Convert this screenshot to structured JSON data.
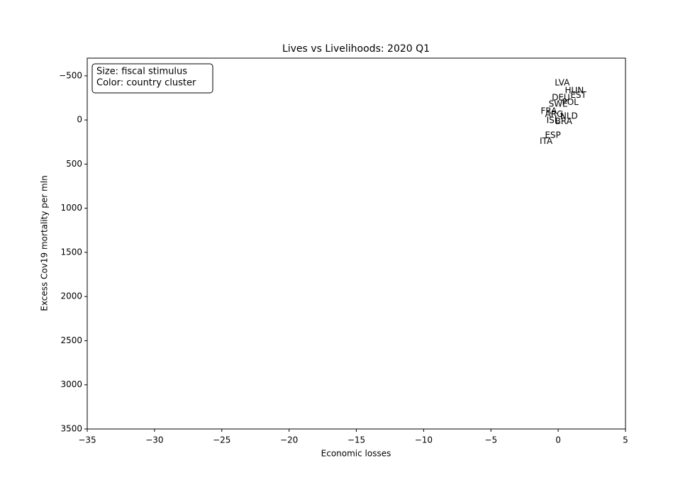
{
  "chart_data": {
    "type": "scatter",
    "title": "Lives vs Livelihoods: 2020 Q1",
    "xlabel": "Economic losses",
    "ylabel": "Excess Cov19 mortality per mln",
    "annotation": [
      "Size: fiscal stimulus",
      "Color: country cluster"
    ],
    "labels": [
      "LVA",
      "HUN",
      "EST",
      "DEU",
      "POL",
      "SWE",
      "FRA",
      "ARG",
      "NLD",
      "ISL",
      "BRA",
      "ESP",
      "ITA"
    ],
    "x": [
      0.3,
      1.2,
      1.5,
      0.2,
      0.9,
      0.0,
      -0.7,
      -0.3,
      0.8,
      -0.4,
      0.4,
      -0.4,
      -0.9
    ],
    "y": [
      -420,
      -330,
      -280,
      -250,
      -200,
      -180,
      -97,
      -60,
      -40,
      8,
      20,
      177,
      242
    ],
    "color": "#000000",
    "xlim": [
      -35,
      5
    ],
    "xticks": [
      {
        "value": -35,
        "label": "−35"
      },
      {
        "value": -30,
        "label": "−30"
      },
      {
        "value": -25,
        "label": "−25"
      },
      {
        "value": -20,
        "label": "−20"
      },
      {
        "value": -15,
        "label": "−15"
      },
      {
        "value": -10,
        "label": "−10"
      },
      {
        "value": -5,
        "label": "−5"
      },
      0,
      5
    ],
    "ylim": [
      3500,
      -700
    ],
    "yticks": [
      {
        "value": -500,
        "label": "−500"
      },
      0,
      500,
      1000,
      1500,
      2000,
      2500,
      3000,
      3500
    ],
    "grid": false
  }
}
